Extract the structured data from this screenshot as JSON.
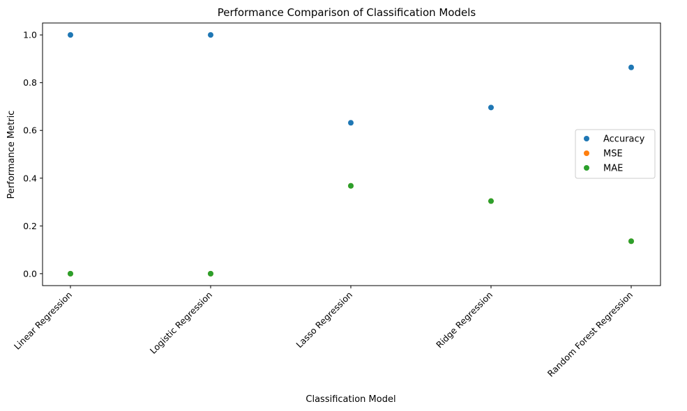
{
  "chart_data": {
    "type": "scatter",
    "title": "Performance Comparison of Classification Models",
    "xlabel": "Classification Model",
    "ylabel": "Performance Metric",
    "categories": [
      "Linear Regression",
      "Logistic Regression",
      "Lasso Regression",
      "Ridge Regression",
      "Random Forest Regression"
    ],
    "ylim": [
      -0.05,
      1.05
    ],
    "yticks": [
      "0.0",
      "0.2",
      "0.4",
      "0.6",
      "0.8",
      "1.0"
    ],
    "grid": false,
    "legend_position": "center-right",
    "series": [
      {
        "name": "Accuracy",
        "color": "#1f77b4",
        "values": [
          1.0,
          1.0,
          0.632,
          0.696,
          0.864
        ]
      },
      {
        "name": "MSE",
        "color": "#ff7f0e",
        "values": [
          0.0,
          0.0,
          0.368,
          0.304,
          0.136
        ]
      },
      {
        "name": "MAE",
        "color": "#2ca02c",
        "values": [
          0.0,
          0.0,
          0.368,
          0.304,
          0.136
        ]
      }
    ]
  }
}
